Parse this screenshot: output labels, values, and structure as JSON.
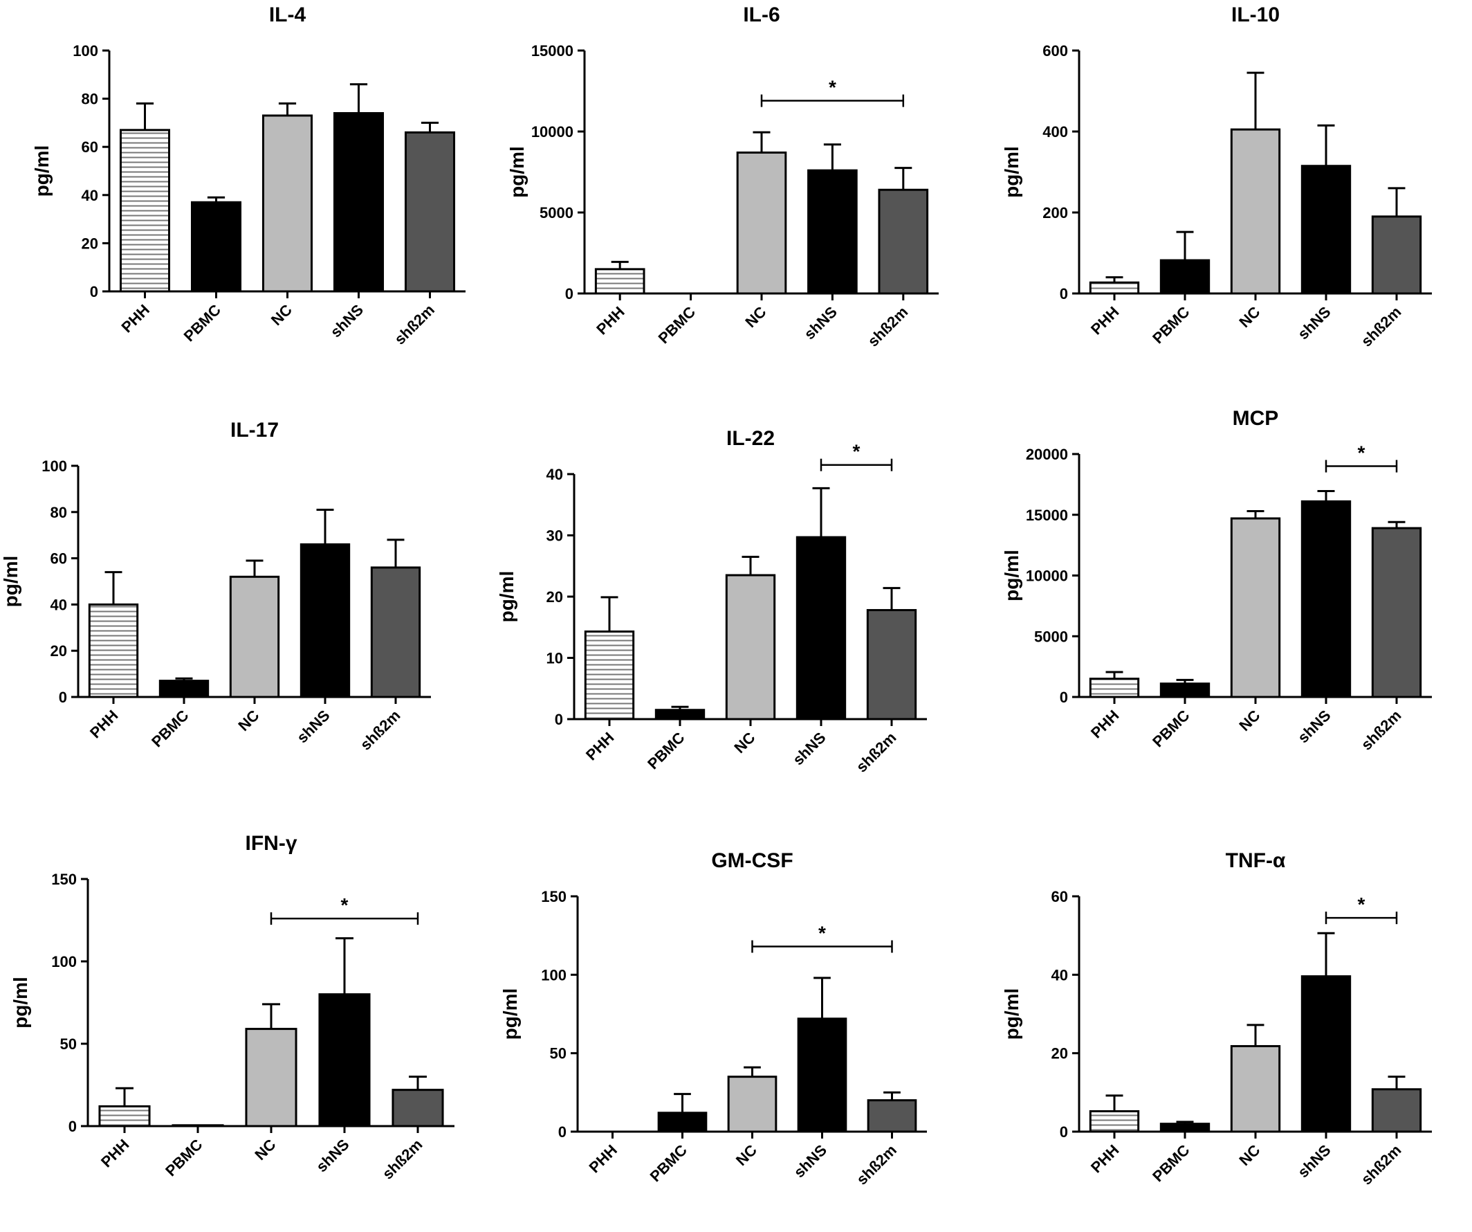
{
  "chart_data": [
    {
      "title": "IL-4",
      "ylabel": "pg/ml",
      "type": "bar",
      "ylim": [
        0,
        100
      ],
      "yticks": [
        0,
        20,
        40,
        60,
        80,
        100
      ],
      "categories": [
        "PHH",
        "PBMC",
        "NC",
        "shNS",
        "shß2m"
      ],
      "values": [
        67,
        37,
        73,
        74,
        66
      ],
      "errors": [
        11,
        2,
        5,
        12,
        4
      ],
      "sig": null
    },
    {
      "title": "IL-6",
      "ylabel": "pg/ml",
      "type": "bar",
      "ylim": [
        0,
        15000
      ],
      "yticks": [
        0,
        5000,
        10000,
        15000
      ],
      "categories": [
        "PHH",
        "PBMC",
        "NC",
        "shNS",
        "shß2m"
      ],
      "values": [
        1500,
        0,
        8700,
        7600,
        6400
      ],
      "errors": [
        450,
        0,
        1250,
        1600,
        1350
      ],
      "sig": {
        "from": 2,
        "to": 4,
        "label": "*",
        "y": 11900
      }
    },
    {
      "title": "IL-10",
      "ylabel": "pg/ml",
      "type": "bar",
      "ylim": [
        0,
        600
      ],
      "yticks": [
        0,
        200,
        400,
        600
      ],
      "categories": [
        "PHH",
        "PBMC",
        "NC",
        "shNS",
        "shß2m"
      ],
      "values": [
        27,
        82,
        405,
        315,
        190
      ],
      "errors": [
        13,
        70,
        140,
        100,
        70
      ],
      "sig": null
    },
    {
      "title": "IL-17",
      "ylabel": "pg/ml",
      "type": "bar",
      "ylim": [
        0,
        100
      ],
      "yticks": [
        0,
        20,
        40,
        60,
        80,
        100
      ],
      "categories": [
        "PHH",
        "PBMC",
        "NC",
        "shNS",
        "shß2m"
      ],
      "values": [
        40,
        7,
        52,
        66,
        56
      ],
      "errors": [
        14,
        1,
        7,
        15,
        12
      ],
      "sig": null
    },
    {
      "title": "IL-22",
      "ylabel": "pg/ml",
      "type": "bar",
      "ylim": [
        0,
        40
      ],
      "yticks": [
        0,
        10,
        20,
        30,
        40
      ],
      "categories": [
        "PHH",
        "PBMC",
        "NC",
        "shNS",
        "shß2m"
      ],
      "values": [
        14.3,
        1.5,
        23.5,
        29.7,
        17.8
      ],
      "errors": [
        5.6,
        0.5,
        3,
        8,
        3.6
      ],
      "sig": {
        "from": 3,
        "to": 4,
        "label": "*",
        "y": 41.5
      }
    },
    {
      "title": "MCP",
      "ylabel": "pg/ml",
      "type": "bar",
      "ylim": [
        0,
        20000
      ],
      "yticks": [
        0,
        5000,
        10000,
        15000,
        20000
      ],
      "categories": [
        "PHH",
        "PBMC",
        "NC",
        "shNS",
        "shß2m"
      ],
      "values": [
        1500,
        1100,
        14700,
        16100,
        13900
      ],
      "errors": [
        550,
        300,
        600,
        850,
        500
      ],
      "sig": {
        "from": 3,
        "to": 4,
        "label": "*",
        "y": 19000
      }
    },
    {
      "title": "IFN-γ",
      "ylabel": "pg/ml",
      "type": "bar",
      "ylim": [
        0,
        150
      ],
      "yticks": [
        0,
        50,
        100,
        150
      ],
      "categories": [
        "PHH",
        "PBMC",
        "NC",
        "shNS",
        "shß2m"
      ],
      "values": [
        12,
        0.5,
        59,
        80,
        22
      ],
      "errors": [
        11,
        0,
        15,
        34,
        8
      ],
      "sig": {
        "from": 2,
        "to": 4,
        "label": "*",
        "y": 126
      }
    },
    {
      "title": "GM-CSF",
      "ylabel": "pg/ml",
      "type": "bar",
      "ylim": [
        0,
        150
      ],
      "yticks": [
        0,
        50,
        100,
        150
      ],
      "categories": [
        "PHH",
        "PBMC",
        "NC",
        "shNS",
        "shß2m"
      ],
      "values": [
        0,
        12,
        35,
        72,
        20
      ],
      "errors": [
        0,
        12,
        6,
        26,
        5
      ],
      "sig": {
        "from": 2,
        "to": 4,
        "label": "*",
        "y": 118
      }
    },
    {
      "title": "TNF-α",
      "ylabel": "pg/ml",
      "type": "bar",
      "ylim": [
        0,
        60
      ],
      "yticks": [
        0,
        20,
        40,
        60
      ],
      "categories": [
        "PHH",
        "PBMC",
        "NC",
        "shNS",
        "shß2m"
      ],
      "values": [
        5.2,
        2,
        21.8,
        39.6,
        10.8
      ],
      "errors": [
        4,
        0.5,
        5.4,
        11,
        3.2
      ],
      "sig": {
        "from": 3,
        "to": 4,
        "label": "*",
        "y": 54.5
      }
    }
  ],
  "bar_colors": [
    "hatch",
    "#000000",
    "#bbbbbb",
    "#000000",
    "#555555"
  ]
}
